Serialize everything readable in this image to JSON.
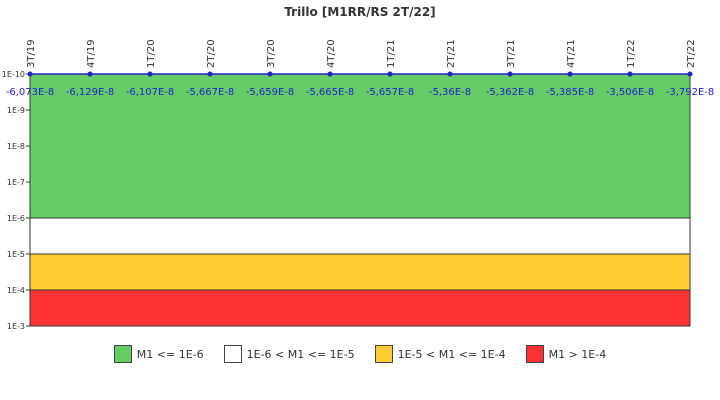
{
  "chart_data": {
    "type": "line",
    "title": "Trillo [M1RR/RS 2T/22]",
    "y_scale": "log",
    "y_axis_inverted": true,
    "ylim": [
      1e-10,
      0.001
    ],
    "ytick_labels": [
      "1E-10",
      "1E-9",
      "1E-8",
      "1E-7",
      "1E-6",
      "1E-5",
      "1E-4",
      "1E-3"
    ],
    "categories": [
      "3T/19",
      "4T/19",
      "1T/20",
      "2T/20",
      "3T/20",
      "4T/20",
      "1T/21",
      "2T/21",
      "3T/21",
      "4T/21",
      "1T/22",
      "2T/22"
    ],
    "series": [
      {
        "values": [
          -6.073e-08,
          -6.129e-08,
          -6.107e-08,
          -5.667e-08,
          -5.659e-08,
          -5.665e-08,
          -5.657e-08,
          -5.36e-08,
          -5.362e-08,
          -5.385e-08,
          -3.506e-08,
          -3.792e-08
        ],
        "labels": [
          "-6,073E-8",
          "-6,129E-8",
          "-6,107E-8",
          "-5,667E-8",
          "-5,659E-8",
          "-5,665E-8",
          "-5,657E-8",
          "-5,36E-8",
          "-5,362E-8",
          "-5,385E-8",
          "-3,506E-8",
          "-3,792E-8"
        ],
        "color": "#2222cc"
      }
    ],
    "bands": [
      {
        "from": 1e-10,
        "to": 1e-06,
        "color": "#66cc66",
        "label": "M1 <= 1E-6"
      },
      {
        "from": 1e-06,
        "to": 1e-05,
        "color": "#ffffff",
        "label": "1E-6 < M1 <= 1E-5"
      },
      {
        "from": 1e-05,
        "to": 0.0001,
        "color": "#ffcc33",
        "label": "1E-5 < M1 <= 1E-4"
      },
      {
        "from": 0.0001,
        "to": 0.001,
        "color": "#ff3333",
        "label": "M1 > 1E-4"
      }
    ],
    "legend_position": "bottom",
    "grid": false
  }
}
